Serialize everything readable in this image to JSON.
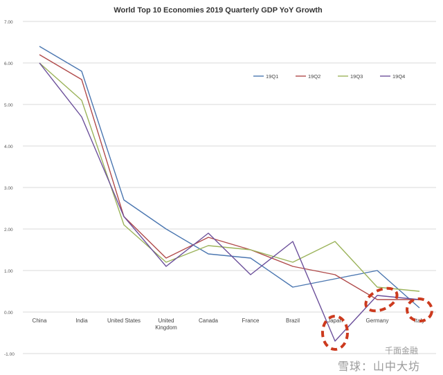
{
  "chart_data": {
    "type": "line",
    "title": "World Top 10 Economies 2019 Quarterly GDP YoY Growth",
    "xlabel": "",
    "ylabel": "",
    "categories": [
      "China",
      "India",
      "United States",
      "United Kingdom",
      "Canada",
      "France",
      "Brazil",
      "Japan",
      "Germany",
      "Italy"
    ],
    "ylim": [
      -1.0,
      7.0
    ],
    "yticks": [
      "7.00",
      "6.00",
      "5.00",
      "4.00",
      "3.00",
      "2.00",
      "1.00",
      "0.00",
      "-1.00"
    ],
    "grid": true,
    "legend_position": "top-right",
    "series": [
      {
        "name": "19Q1",
        "color": "#4a76b0",
        "values": [
          6.4,
          5.8,
          2.7,
          2.0,
          1.4,
          1.3,
          0.6,
          0.8,
          1.0,
          0.1
        ]
      },
      {
        "name": "19Q2",
        "color": "#b04a4a",
        "values": [
          6.2,
          5.6,
          2.3,
          1.3,
          1.8,
          1.5,
          1.1,
          0.9,
          0.3,
          0.3
        ]
      },
      {
        "name": "19Q3",
        "color": "#9bb35a",
        "values": [
          6.0,
          5.1,
          2.1,
          1.2,
          1.6,
          1.5,
          1.2,
          1.7,
          0.6,
          0.5
        ]
      },
      {
        "name": "19Q4",
        "color": "#6b4f9a",
        "values": [
          6.0,
          4.7,
          2.3,
          1.1,
          1.9,
          0.9,
          1.7,
          -0.7,
          0.4,
          0.3
        ]
      }
    ],
    "annotations": {
      "highlight_color": "#cc3a1e",
      "highlighted_categories": [
        "Japan",
        "Germany",
        "Italy"
      ]
    }
  },
  "watermark": {
    "line1": "千面金融",
    "line2": "雪球：山中大坊"
  }
}
